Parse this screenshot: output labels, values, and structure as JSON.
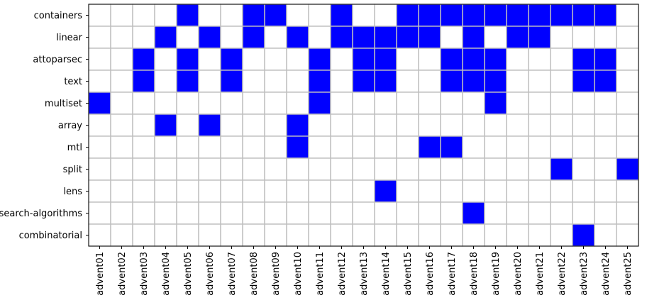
{
  "chart_data": {
    "type": "heatmap",
    "title": "",
    "xlabel": "",
    "ylabel": "",
    "x_categories": [
      "advent01",
      "advent02",
      "advent03",
      "advent04",
      "advent05",
      "advent06",
      "advent07",
      "advent08",
      "advent09",
      "advent10",
      "advent11",
      "advent12",
      "advent13",
      "advent14",
      "advent15",
      "advent16",
      "advent17",
      "advent18",
      "advent19",
      "advent20",
      "advent21",
      "advent22",
      "advent23",
      "advent24",
      "advent25"
    ],
    "y_categories": [
      "containers",
      "linear",
      "attoparsec",
      "text",
      "multiset",
      "array",
      "mtl",
      "split",
      "lens",
      "search-algorithms",
      "combinatorial"
    ],
    "values": [
      [
        0,
        0,
        0,
        0,
        1,
        0,
        0,
        1,
        1,
        0,
        0,
        1,
        0,
        0,
        1,
        1,
        1,
        1,
        1,
        1,
        1,
        1,
        1,
        1,
        0
      ],
      [
        0,
        0,
        0,
        1,
        0,
        1,
        0,
        1,
        0,
        1,
        0,
        1,
        1,
        1,
        1,
        1,
        0,
        1,
        0,
        1,
        1,
        0,
        0,
        0,
        0
      ],
      [
        0,
        0,
        1,
        0,
        1,
        0,
        1,
        0,
        0,
        0,
        1,
        0,
        1,
        1,
        0,
        0,
        1,
        1,
        1,
        0,
        0,
        0,
        1,
        1,
        0
      ],
      [
        0,
        0,
        1,
        0,
        1,
        0,
        1,
        0,
        0,
        0,
        1,
        0,
        1,
        1,
        0,
        0,
        1,
        1,
        1,
        0,
        0,
        0,
        1,
        1,
        0
      ],
      [
        1,
        0,
        0,
        0,
        0,
        0,
        0,
        0,
        0,
        0,
        1,
        0,
        0,
        0,
        0,
        0,
        0,
        0,
        1,
        0,
        0,
        0,
        0,
        0,
        0
      ],
      [
        0,
        0,
        0,
        1,
        0,
        1,
        0,
        0,
        0,
        1,
        0,
        0,
        0,
        0,
        0,
        0,
        0,
        0,
        0,
        0,
        0,
        0,
        0,
        0,
        0
      ],
      [
        0,
        0,
        0,
        0,
        0,
        0,
        0,
        0,
        0,
        1,
        0,
        0,
        0,
        0,
        0,
        1,
        1,
        0,
        0,
        0,
        0,
        0,
        0,
        0,
        0
      ],
      [
        0,
        0,
        0,
        0,
        0,
        0,
        0,
        0,
        0,
        0,
        0,
        0,
        0,
        0,
        0,
        0,
        0,
        0,
        0,
        0,
        0,
        1,
        0,
        0,
        1
      ],
      [
        0,
        0,
        0,
        0,
        0,
        0,
        0,
        0,
        0,
        0,
        0,
        0,
        0,
        1,
        0,
        0,
        0,
        0,
        0,
        0,
        0,
        0,
        0,
        0,
        0
      ],
      [
        0,
        0,
        0,
        0,
        0,
        0,
        0,
        0,
        0,
        0,
        0,
        0,
        0,
        0,
        0,
        0,
        0,
        1,
        0,
        0,
        0,
        0,
        0,
        0,
        0
      ],
      [
        0,
        0,
        0,
        0,
        0,
        0,
        0,
        0,
        0,
        0,
        0,
        0,
        0,
        0,
        0,
        0,
        0,
        0,
        0,
        0,
        0,
        0,
        1,
        0,
        0
      ]
    ],
    "colors": {
      "on": "#0000ff",
      "off": "#ffffff",
      "grid": "#bfbfbf",
      "axis": "#000000"
    },
    "grid": true,
    "legend": "none"
  }
}
